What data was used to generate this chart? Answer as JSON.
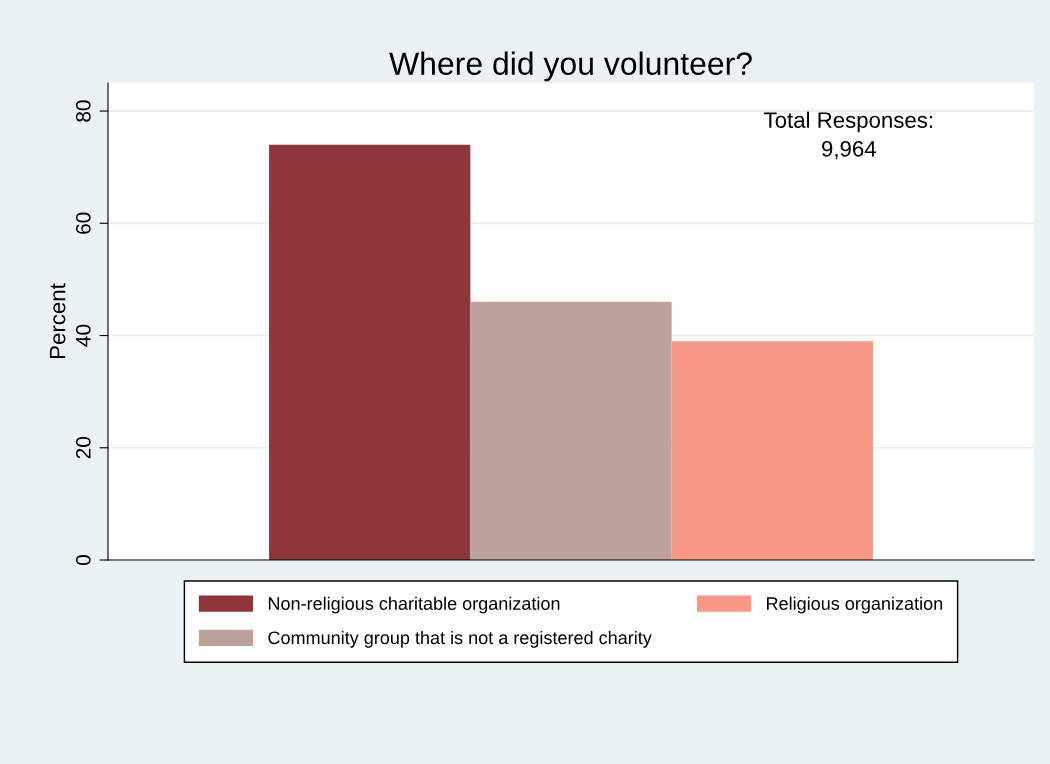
{
  "chart_data": {
    "type": "bar",
    "title": "Where did you volunteer?",
    "ylabel": "Percent",
    "categories": [
      null
    ],
    "series": [
      {
        "name": "Non-religious charitable organization",
        "color": "#8f353c",
        "values": [
          74
        ]
      },
      {
        "name": "Community group that is not a registered charity",
        "color": "#bca29b",
        "values": [
          46
        ]
      },
      {
        "name": "Religious organization",
        "color": "#f79886",
        "values": [
          39
        ]
      }
    ],
    "ylim": [
      0,
      85
    ],
    "yticks": [
      0,
      20,
      40,
      60,
      80
    ],
    "grid": "y",
    "legend": "bottom",
    "tick_labels": "y",
    "annotations": [
      "Total Responses:\n9,964"
    ]
  }
}
